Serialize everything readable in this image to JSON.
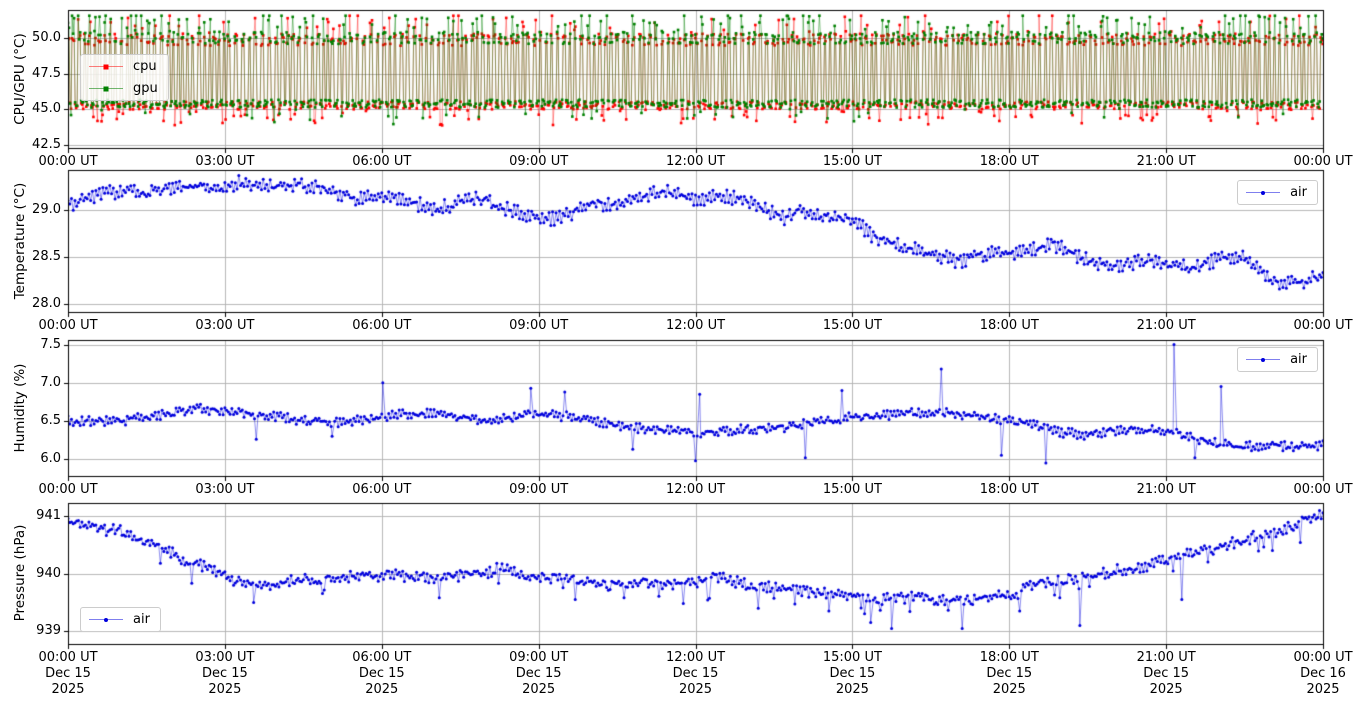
{
  "figure": {
    "background": "#ffffff",
    "grid_color": "#b0b0b0",
    "axis_color": "#000000",
    "text_color": "#000000",
    "series_blue": "#0000dd",
    "series_red": "#ff0000",
    "series_green": "#008000"
  },
  "x_axis": {
    "start": "Dec 15 2025 00:00 UT",
    "end": "Dec 16 2025 00:00 UT",
    "tick_hours": [
      0,
      3,
      6,
      9,
      12,
      15,
      18,
      21,
      24
    ],
    "tick_labels": [
      "00:00 UT",
      "03:00 UT",
      "06:00 UT",
      "09:00 UT",
      "12:00 UT",
      "15:00 UT",
      "18:00 UT",
      "21:00 UT",
      "00:00 UT"
    ],
    "date_line1": [
      "Dec 15",
      "Dec 15",
      "Dec 15",
      "Dec 15",
      "Dec 15",
      "Dec 15",
      "Dec 15",
      "Dec 15",
      "Dec 16"
    ],
    "date_line2": [
      "2025",
      "2025",
      "2025",
      "2025",
      "2025",
      "2025",
      "2025",
      "2025",
      "2025"
    ]
  },
  "chart_data": [
    {
      "id": "cpu-gpu",
      "type": "line",
      "ylabel": "CPU/GPU (°C)",
      "ylim": [
        42.3,
        51.95
      ],
      "yticks": [
        42.5,
        45.0,
        47.5,
        50.0
      ],
      "ytick_labels": [
        "42.5",
        "45.0",
        "47.5",
        "50.0"
      ],
      "legend": {
        "location": "center-left",
        "entries": [
          "cpu",
          "gpu"
        ]
      },
      "description": "Fan-cycle oscillation between ~45 and ~50 degC every ~5 min, highs spiking to ~51.5, lows dipping to ~43.9",
      "oscillation": {
        "seed": 7,
        "sample_seconds": 70,
        "dwell_low_minutes": [
          1.5,
          4.0
        ],
        "dwell_high_minutes": [
          1.2,
          3.5
        ],
        "low_base": 45.05,
        "low_jitter": 0.55,
        "high_base": 49.5,
        "high_jitter": 0.85,
        "surge": [
          0.6,
          1.85
        ],
        "drop": [
          0.45,
          1.2
        ],
        "clip_max": 51.55
      },
      "series": [
        {
          "name": "cpu",
          "marker": "square",
          "color": "#ff0000",
          "line_color": "rgba(255,0,0,0.40)",
          "seed": 11,
          "bias": -0.05,
          "surge_prob": 0.15,
          "drop_prob": 0.14,
          "approx_range": [
            43.9,
            51.5
          ]
        },
        {
          "name": "gpu",
          "marker": "square",
          "color": "#008000",
          "line_color": "rgba(0,128,0,0.45)",
          "seed": 23,
          "bias": 0.08,
          "surge_prob": 0.2,
          "drop_prob": 0.05,
          "approx_range": [
            44.2,
            51.5
          ]
        }
      ]
    },
    {
      "id": "temperature",
      "type": "line",
      "ylabel": "Temperature (°C)",
      "ylim": [
        27.92,
        29.42
      ],
      "yticks": [
        28.0,
        28.5,
        29.0
      ],
      "ytick_labels": [
        "28.0",
        "28.5",
        "29.0"
      ],
      "legend": {
        "location": "upper-right",
        "entries": [
          "air"
        ]
      },
      "series": [
        {
          "name": "air",
          "marker": "dot",
          "color": "#0000dd",
          "line_color": "rgba(0,0,221,0.45)",
          "seed": 31,
          "sample_minutes": 2,
          "noise": 0.05,
          "zigzag": 0.03,
          "trend": [
            [
              0,
              29.05
            ],
            [
              0.5,
              29.15
            ],
            [
              1,
              29.2
            ],
            [
              1.5,
              29.18
            ],
            [
              2,
              29.22
            ],
            [
              2.5,
              29.25
            ],
            [
              3,
              29.22
            ],
            [
              3.3,
              29.3
            ],
            [
              3.8,
              29.24
            ],
            [
              4.4,
              29.28
            ],
            [
              5,
              29.2
            ],
            [
              5.5,
              29.12
            ],
            [
              6,
              29.16
            ],
            [
              6.5,
              29.1
            ],
            [
              7,
              29.0
            ],
            [
              7.4,
              29.06
            ],
            [
              7.8,
              29.14
            ],
            [
              8.2,
              29.05
            ],
            [
              8.7,
              28.95
            ],
            [
              9.2,
              28.9
            ],
            [
              9.6,
              28.96
            ],
            [
              10,
              29.08
            ],
            [
              10.5,
              29.05
            ],
            [
              11,
              29.15
            ],
            [
              11.4,
              29.2
            ],
            [
              12,
              29.1
            ],
            [
              12.5,
              29.16
            ],
            [
              13,
              29.1
            ],
            [
              13.4,
              28.98
            ],
            [
              13.7,
              28.9
            ],
            [
              14,
              29.0
            ],
            [
              14.4,
              28.94
            ],
            [
              15,
              28.9
            ],
            [
              15.4,
              28.72
            ],
            [
              16,
              28.6
            ],
            [
              16.5,
              28.55
            ],
            [
              17,
              28.45
            ],
            [
              17.4,
              28.52
            ],
            [
              18,
              28.55
            ],
            [
              18.4,
              28.56
            ],
            [
              18.8,
              28.65
            ],
            [
              19.3,
              28.5
            ],
            [
              20,
              28.4
            ],
            [
              20.5,
              28.46
            ],
            [
              21,
              28.43
            ],
            [
              21.5,
              28.38
            ],
            [
              22,
              28.48
            ],
            [
              22.4,
              28.52
            ],
            [
              22.8,
              28.35
            ],
            [
              23.2,
              28.2
            ],
            [
              23.6,
              28.24
            ],
            [
              24,
              28.3
            ]
          ],
          "spikes": []
        }
      ]
    },
    {
      "id": "humidity",
      "type": "line",
      "ylabel": "Humidity (%)",
      "ylim": [
        5.78,
        7.56
      ],
      "yticks": [
        6.0,
        6.5,
        7.0,
        7.5
      ],
      "ytick_labels": [
        "6.0",
        "6.5",
        "7.0",
        "7.5"
      ],
      "legend": {
        "location": "upper-right",
        "entries": [
          "air"
        ]
      },
      "series": [
        {
          "name": "air",
          "marker": "dot",
          "color": "#0000dd",
          "line_color": "rgba(0,0,221,0.45)",
          "seed": 43,
          "sample_minutes": 2,
          "noise": 0.045,
          "zigzag": 0.02,
          "trend": [
            [
              0,
              6.5
            ],
            [
              1,
              6.5
            ],
            [
              2,
              6.6
            ],
            [
              2.5,
              6.66
            ],
            [
              3,
              6.63
            ],
            [
              3.5,
              6.6
            ],
            [
              4,
              6.56
            ],
            [
              4.5,
              6.5
            ],
            [
              5,
              6.47
            ],
            [
              5.5,
              6.5
            ],
            [
              6,
              6.55
            ],
            [
              6.5,
              6.6
            ],
            [
              7,
              6.6
            ],
            [
              7.5,
              6.55
            ],
            [
              8,
              6.5
            ],
            [
              8.5,
              6.55
            ],
            [
              9,
              6.6
            ],
            [
              9.5,
              6.56
            ],
            [
              10,
              6.5
            ],
            [
              10.5,
              6.44
            ],
            [
              11,
              6.4
            ],
            [
              11.5,
              6.37
            ],
            [
              12,
              6.35
            ],
            [
              12.5,
              6.36
            ],
            [
              13,
              6.4
            ],
            [
              13.5,
              6.4
            ],
            [
              14,
              6.45
            ],
            [
              14.5,
              6.5
            ],
            [
              15,
              6.55
            ],
            [
              15.5,
              6.56
            ],
            [
              16,
              6.6
            ],
            [
              16.5,
              6.62
            ],
            [
              17,
              6.6
            ],
            [
              17.5,
              6.55
            ],
            [
              18,
              6.5
            ],
            [
              18.5,
              6.44
            ],
            [
              19,
              6.35
            ],
            [
              19.5,
              6.32
            ],
            [
              20,
              6.38
            ],
            [
              20.5,
              6.4
            ],
            [
              21,
              6.38
            ],
            [
              21.5,
              6.28
            ],
            [
              22,
              6.2
            ],
            [
              22.5,
              6.16
            ],
            [
              23,
              6.2
            ],
            [
              23.5,
              6.15
            ],
            [
              24,
              6.18
            ]
          ],
          "spikes": [
            [
              6.02,
              7.0
            ],
            [
              8.85,
              6.93
            ],
            [
              9.5,
              6.88
            ],
            [
              12.08,
              6.85
            ],
            [
              14.8,
              6.9
            ],
            [
              16.7,
              7.18
            ],
            [
              21.15,
              7.5
            ],
            [
              22.05,
              6.95
            ],
            [
              3.6,
              6.26
            ],
            [
              5.05,
              6.3
            ],
            [
              10.8,
              6.13
            ],
            [
              12.0,
              5.98
            ],
            [
              14.1,
              6.02
            ],
            [
              17.85,
              6.05
            ],
            [
              18.7,
              5.95
            ],
            [
              21.55,
              6.02
            ],
            [
              22.9,
              6.14
            ]
          ]
        }
      ]
    },
    {
      "id": "pressure",
      "type": "line",
      "ylabel": "Pressure (hPa)",
      "ylim": [
        938.78,
        941.22
      ],
      "yticks": [
        939,
        940,
        941
      ],
      "ytick_labels": [
        "939",
        "940",
        "941"
      ],
      "legend": {
        "location": "lower-left",
        "entries": [
          "air"
        ]
      },
      "series": [
        {
          "name": "air",
          "marker": "dot",
          "color": "#0000dd",
          "line_color": "rgba(0,0,221,0.45)",
          "seed": 59,
          "sample_minutes": 2,
          "noise": 0.08,
          "zigzag": 0.02,
          "neg_prob": 0.05,
          "neg_depth": [
            0.08,
            0.3
          ],
          "trend": [
            [
              0,
              940.95
            ],
            [
              0.3,
              940.85
            ],
            [
              0.7,
              940.8
            ],
            [
              1,
              940.75
            ],
            [
              1.4,
              940.6
            ],
            [
              1.7,
              940.45
            ],
            [
              2,
              940.35
            ],
            [
              2.3,
              940.2
            ],
            [
              2.7,
              940.1
            ],
            [
              3,
              939.95
            ],
            [
              3.3,
              939.85
            ],
            [
              3.6,
              939.78
            ],
            [
              4,
              939.85
            ],
            [
              4.5,
              939.9
            ],
            [
              5,
              939.9
            ],
            [
              5.5,
              939.95
            ],
            [
              6,
              940.0
            ],
            [
              6.5,
              939.95
            ],
            [
              7,
              939.9
            ],
            [
              7.5,
              940.0
            ],
            [
              8,
              940.0
            ],
            [
              8.3,
              940.12
            ],
            [
              8.7,
              939.95
            ],
            [
              9,
              939.96
            ],
            [
              9.5,
              939.9
            ],
            [
              10,
              939.85
            ],
            [
              10.5,
              939.8
            ],
            [
              11,
              939.85
            ],
            [
              11.5,
              939.8
            ],
            [
              12,
              939.85
            ],
            [
              12.4,
              939.95
            ],
            [
              13,
              939.8
            ],
            [
              13.5,
              939.75
            ],
            [
              14,
              939.7
            ],
            [
              14.5,
              939.65
            ],
            [
              15,
              939.6
            ],
            [
              15.5,
              939.55
            ],
            [
              16,
              939.62
            ],
            [
              16.5,
              939.55
            ],
            [
              17,
              939.5
            ],
            [
              17.5,
              939.56
            ],
            [
              18,
              939.65
            ],
            [
              18.5,
              939.8
            ],
            [
              19,
              939.9
            ],
            [
              19.5,
              939.95
            ],
            [
              20,
              940.05
            ],
            [
              20.5,
              940.1
            ],
            [
              21,
              940.25
            ],
            [
              21.5,
              940.35
            ],
            [
              22,
              940.45
            ],
            [
              22.5,
              940.6
            ],
            [
              23,
              940.7
            ],
            [
              23.5,
              940.85
            ],
            [
              24,
              941.05
            ]
          ],
          "spikes": [
            [
              3.55,
              939.5
            ],
            [
              9.7,
              939.55
            ],
            [
              13.2,
              939.4
            ],
            [
              14.55,
              939.35
            ],
            [
              15.35,
              939.15
            ],
            [
              15.75,
              939.05
            ],
            [
              17.1,
              939.05
            ],
            [
              18.2,
              939.35
            ],
            [
              19.35,
              939.1
            ],
            [
              21.3,
              939.55
            ]
          ]
        }
      ]
    }
  ]
}
